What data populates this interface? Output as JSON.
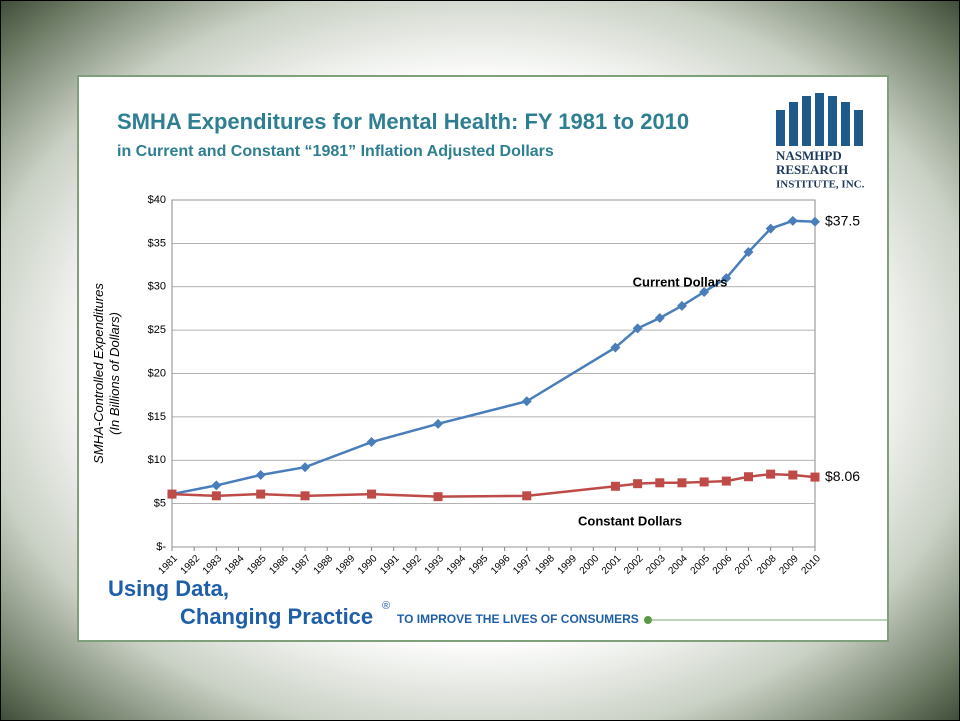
{
  "chart_data": {
    "type": "line",
    "title": "SMHA Expenditures for Mental Health: FY 1981 to 2010",
    "subtitle": "in Current and Constant “1981” Inflation Adjusted Dollars",
    "y_label": [
      "SMHA-Controlled Expenditures",
      "(In Billions of Dollars)"
    ],
    "x": [
      1981,
      1983,
      1985,
      1987,
      1990,
      1993,
      1997,
      2001,
      2002,
      2003,
      2004,
      2005,
      2006,
      2007,
      2008,
      2009,
      2010
    ],
    "series": [
      {
        "name": "Current Dollars",
        "color": "#4a7ebb",
        "marker": "diamond",
        "values": [
          6.1,
          7.1,
          8.3,
          9.2,
          12.1,
          14.2,
          16.8,
          23.0,
          25.2,
          26.4,
          27.8,
          29.4,
          31.0,
          34.0,
          36.7,
          37.6,
          37.5
        ],
        "value_labels": [
          null,
          null,
          null,
          null,
          null,
          null,
          null,
          null,
          null,
          null,
          null,
          null,
          null,
          null,
          null,
          null,
          "$37.5"
        ]
      },
      {
        "name": "Constant Dollars",
        "color": "#be4b48",
        "marker": "square",
        "values": [
          6.1,
          5.9,
          6.1,
          5.9,
          6.1,
          5.8,
          5.9,
          7.0,
          7.3,
          7.4,
          7.4,
          7.5,
          7.6,
          8.1,
          8.4,
          8.3,
          8.06
        ],
        "value_labels": [
          null,
          null,
          null,
          null,
          null,
          null,
          null,
          null,
          null,
          null,
          null,
          null,
          null,
          null,
          null,
          null,
          "$8.06"
        ]
      }
    ],
    "xlim": [
      1981,
      2010
    ],
    "xticks": [
      1981,
      1982,
      1983,
      1984,
      1985,
      1986,
      1987,
      1988,
      1989,
      1990,
      1991,
      1992,
      1993,
      1994,
      1995,
      1996,
      1997,
      1998,
      1999,
      2000,
      2001,
      2002,
      2003,
      2004,
      2005,
      2006,
      2007,
      2008,
      2009,
      2010
    ],
    "ylim": [
      0,
      40
    ],
    "yticks": [
      {
        "value": 0,
        "label": "$-"
      },
      {
        "value": 5,
        "label": "$5"
      },
      {
        "value": 10,
        "label": "$10"
      },
      {
        "value": 15,
        "label": "$15"
      },
      {
        "value": 20,
        "label": "$20"
      },
      {
        "value": 25,
        "label": "$25"
      },
      {
        "value": 30,
        "label": "$30"
      },
      {
        "value": 35,
        "label": "$35"
      },
      {
        "value": 40,
        "label": "$40"
      }
    ],
    "grid": true
  },
  "logo": {
    "line1": "NASMHPD",
    "line2": "RESEARCH",
    "line3": "INSTITUTE, INC."
  },
  "footer": {
    "line1": "Using Data,",
    "line2": "Changing Practice",
    "mark": "®",
    "tagline": "TO IMPROVE THE LIVES OF CONSUMERS"
  }
}
